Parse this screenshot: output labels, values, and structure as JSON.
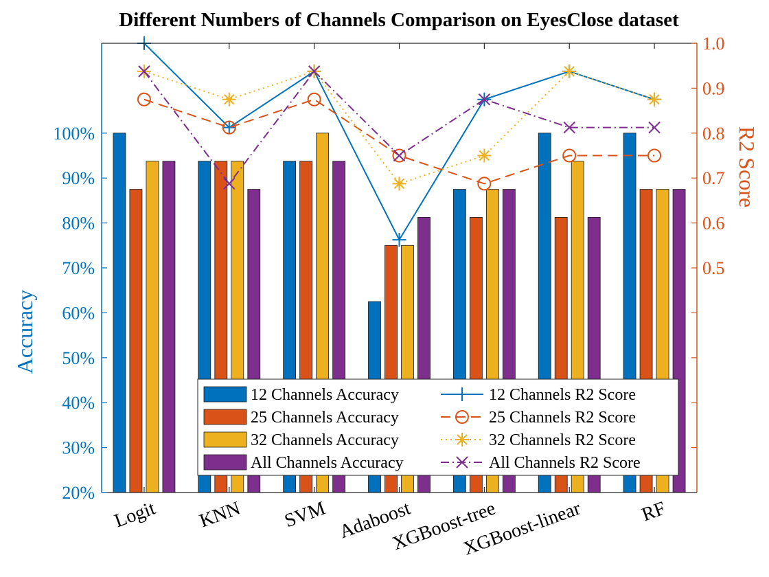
{
  "chart_data": {
    "type": "bar",
    "title": "Different Numbers of Channels Comparison on EyesClose dataset",
    "categories": [
      "Logit",
      "KNN",
      "SVM",
      "Adaboost",
      "XGBoost-tree",
      "XGBoost-linear",
      "RF"
    ],
    "left_axis": {
      "label": "Accuracy",
      "ylim": [
        20,
        120
      ],
      "ticks": [
        "20%",
        "30%",
        "40%",
        "50%",
        "60%",
        "70%",
        "80%",
        "90%",
        "100%"
      ],
      "tick_values": [
        20,
        30,
        40,
        50,
        60,
        70,
        80,
        90,
        100
      ],
      "color": "#0072BD"
    },
    "right_axis": {
      "label": "R2 Score",
      "ylim": [
        0,
        1.0
      ],
      "ticks": [
        "0.5",
        "0.6",
        "0.7",
        "0.8",
        "0.9",
        "1.0"
      ],
      "tick_values": [
        0.5,
        0.6,
        0.7,
        0.8,
        0.9,
        1.0
      ],
      "color": "#D95319"
    },
    "bar_series": [
      {
        "name": "12 Channels Accuracy",
        "color": "#0072BD",
        "values": [
          100,
          93.75,
          93.75,
          62.5,
          87.5,
          100,
          100
        ]
      },
      {
        "name": "25 Channels Accuracy",
        "color": "#D95319",
        "values": [
          87.5,
          93.75,
          93.75,
          75,
          81.25,
          81.25,
          87.5
        ]
      },
      {
        "name": "32 Channels Accuracy",
        "color": "#EDB120",
        "values": [
          93.75,
          93.75,
          100,
          75,
          87.5,
          93.75,
          87.5
        ]
      },
      {
        "name": "All Channels Accuracy",
        "color": "#7E2F8E",
        "values": [
          93.75,
          87.5,
          93.75,
          81.25,
          87.5,
          81.25,
          87.5
        ]
      }
    ],
    "line_series": [
      {
        "name": "12 Channels R2 Score",
        "color": "#0072BD",
        "dash": "solid",
        "marker": "plus",
        "values": [
          1.0,
          0.8125,
          0.9375,
          0.5625,
          0.875,
          0.9375,
          0.875
        ]
      },
      {
        "name": "25 Channels R2 Score",
        "color": "#D95319",
        "dash": "dashed",
        "marker": "circle",
        "values": [
          0.875,
          0.8125,
          0.875,
          0.75,
          0.6875,
          0.75,
          0.75
        ]
      },
      {
        "name": "32 Channels R2 Score",
        "color": "#EDB120",
        "dash": "dotted",
        "marker": "asterisk",
        "values": [
          0.9375,
          0.875,
          0.9375,
          0.6875,
          0.75,
          0.9375,
          0.875
        ]
      },
      {
        "name": "All Channels R2 Score",
        "color": "#7E2F8E",
        "dash": "dashdot",
        "marker": "x",
        "values": [
          0.9375,
          0.6875,
          0.9375,
          0.75,
          0.875,
          0.8125,
          0.8125
        ]
      }
    ],
    "legend": "bottom-center, two columns"
  }
}
